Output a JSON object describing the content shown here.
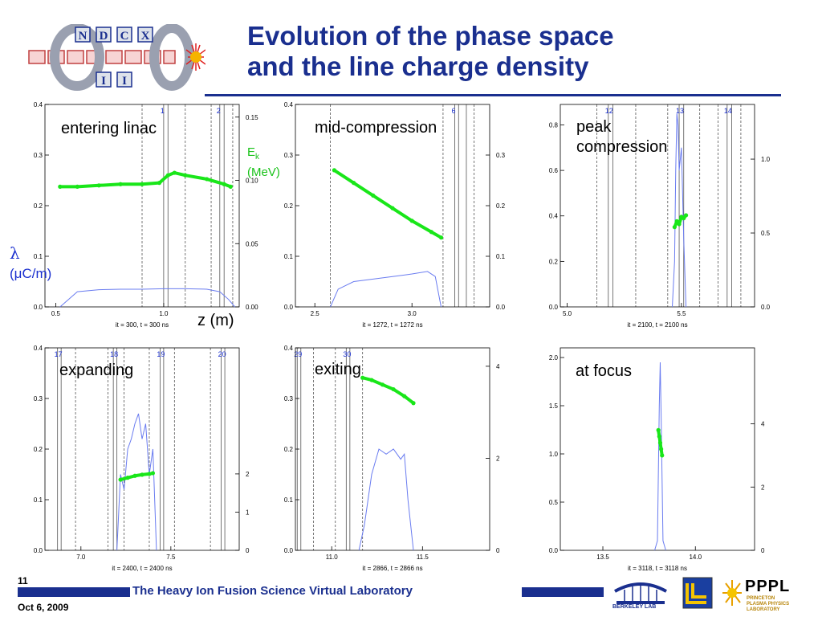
{
  "slide": {
    "title_line1": "Evolution of the phase space",
    "title_line2": "and the line charge density",
    "ek_label_main": "E",
    "ek_label_sub": "k",
    "ek_units": "(MeV)",
    "lambda_symbol": "λ",
    "lambda_units": "(μC/m)",
    "z_label": "z (m)",
    "slide_number": "11",
    "date": "Oct 6, 2009",
    "footer": "The Heavy Ion Fusion Science Virtual Laboratory",
    "logo_letters": [
      "N",
      "D",
      "C",
      "X",
      "I",
      "I"
    ],
    "pppl_name": "PPPL",
    "pppl_sub": "PRINCETON PLASMA PHYSICS LABORATORY",
    "berkeley_text": "BERKELEY LAB"
  },
  "colors": {
    "title": "#1a2f8f",
    "phase_space": "#19e619",
    "line_charge": "#6a7cf0",
    "gap_labels": "#1a2fcf"
  },
  "chart_data": [
    {
      "type": "line",
      "annotation": "entering linac",
      "xticks": [
        0.5,
        1.0
      ],
      "xlim": [
        0.45,
        1.35
      ],
      "ylim": [
        0,
        0.4
      ],
      "yticks": [
        0.0,
        0.1,
        0.2,
        0.3,
        0.4
      ],
      "y2lim": [
        0,
        0.16
      ],
      "y2ticks": [
        0.0,
        0.05,
        0.1,
        0.15
      ],
      "y2ticklabels": [
        "0.00",
        "0.05",
        "0.10",
        "0.15"
      ],
      "footer": "it =  300,   t =   300 ns",
      "gaps": [
        {
          "label": "1",
          "lines": [
            1.0,
            1.02
          ]
        },
        {
          "label": "2",
          "lines": [
            1.26,
            1.28
          ]
        }
      ],
      "dashed": [
        0.9,
        1.1,
        1.22,
        1.32
      ],
      "phase_space": {
        "x": [
          0.52,
          0.6,
          0.7,
          0.8,
          0.9,
          0.98,
          1.02,
          1.05,
          1.1,
          1.2,
          1.28,
          1.31
        ],
        "y": [
          0.095,
          0.095,
          0.096,
          0.097,
          0.097,
          0.098,
          0.104,
          0.106,
          0.104,
          0.101,
          0.097,
          0.095
        ]
      },
      "line_charge": {
        "x": [
          0.52,
          0.6,
          0.7,
          0.8,
          0.9,
          1.0,
          1.1,
          1.2,
          1.26,
          1.3,
          1.33
        ],
        "y": [
          0.0,
          0.03,
          0.034,
          0.035,
          0.035,
          0.036,
          0.036,
          0.035,
          0.03,
          0.015,
          0.0
        ]
      }
    },
    {
      "type": "line",
      "annotation": "mid-compression",
      "xticks": [
        2.5,
        3.0
      ],
      "xlim": [
        2.4,
        3.4
      ],
      "ylim": [
        0,
        0.4
      ],
      "yticks": [
        0.0,
        0.1,
        0.2,
        0.3,
        0.4
      ],
      "y2lim": [
        0,
        0.4
      ],
      "y2ticks": [
        0.0,
        0.1,
        0.2,
        0.3
      ],
      "y2ticklabels": [
        "0.0",
        "0.1",
        "0.2",
        "0.3"
      ],
      "footer": "it = 1272,   t =  1272 ns",
      "gaps": [
        {
          "label": "6",
          "lines": [
            3.22,
            3.24,
            3.28
          ]
        }
      ],
      "dashed": [
        2.58,
        3.16,
        3.32
      ],
      "phase_space": {
        "x": [
          2.6,
          2.7,
          2.8,
          2.9,
          3.0,
          3.1,
          3.15
        ],
        "y": [
          0.27,
          0.245,
          0.22,
          0.195,
          0.17,
          0.148,
          0.137
        ]
      },
      "line_charge": {
        "x": [
          2.58,
          2.62,
          2.7,
          2.8,
          2.9,
          3.0,
          3.08,
          3.12,
          3.15
        ],
        "y": [
          0.0,
          0.035,
          0.05,
          0.055,
          0.06,
          0.065,
          0.07,
          0.06,
          0.0
        ]
      }
    },
    {
      "type": "line",
      "annotation": "peak compression",
      "xticks": [
        5.0,
        5.5
      ],
      "xticklabels": [
        "5.0",
        "5.5"
      ],
      "xlim": [
        4.97,
        5.82
      ],
      "ylim": [
        0,
        0.89
      ],
      "yticks": [
        0.0,
        0.2,
        0.4,
        0.6,
        0.8
      ],
      "y2lim": [
        0,
        1.37
      ],
      "y2ticks": [
        0.0,
        0.5,
        1.0
      ],
      "y2ticklabels": [
        "0.0",
        "0.5",
        "1.0"
      ],
      "footer": "it = 2100,   t =  2100 ns",
      "gaps": [
        {
          "label": "12",
          "lines": [
            5.18,
            5.2
          ]
        },
        {
          "label": "13",
          "lines": [
            5.49,
            5.51
          ]
        },
        {
          "label": "14",
          "lines": [
            5.7,
            5.72
          ]
        }
      ],
      "dashed": [
        5.13,
        5.3,
        5.44,
        5.58,
        5.66,
        5.76
      ],
      "phase_space": {
        "x": [
          5.47,
          5.48,
          5.49,
          5.5,
          5.51,
          5.52
        ],
        "y": [
          0.54,
          0.58,
          0.56,
          0.61,
          0.6,
          0.62
        ]
      },
      "line_charge": {
        "x": [
          5.46,
          5.47,
          5.475,
          5.48,
          5.485,
          5.49,
          5.5,
          5.51,
          5.52
        ],
        "y": [
          0.0,
          0.2,
          0.6,
          0.85,
          0.8,
          0.6,
          0.7,
          0.3,
          0.0
        ]
      }
    },
    {
      "type": "line",
      "annotation": "expanding",
      "xticks": [
        7.0,
        7.5
      ],
      "xlim": [
        6.8,
        7.88
      ],
      "ylim": [
        0,
        0.4
      ],
      "yticks": [
        0.0,
        0.1,
        0.2,
        0.3,
        0.4
      ],
      "y2lim": [
        0,
        5.3
      ],
      "y2ticks": [
        0,
        1,
        2
      ],
      "y2ticklabels": [
        "0",
        "1",
        "2"
      ],
      "footer": "it = 2400,   t =  2400 ns",
      "gaps": [
        {
          "label": "17",
          "lines": [
            6.87,
            6.89
          ]
        },
        {
          "label": "18",
          "lines": [
            7.18,
            7.2
          ]
        },
        {
          "label": "19",
          "lines": [
            7.44,
            7.46
          ]
        },
        {
          "label": "20",
          "lines": [
            7.78,
            7.8
          ]
        }
      ],
      "dashed": [
        6.97,
        7.15,
        7.24,
        7.38,
        7.52,
        7.72
      ],
      "phase_space": {
        "x": [
          7.22,
          7.26,
          7.3,
          7.34,
          7.38,
          7.4
        ],
        "y": [
          1.85,
          1.9,
          1.95,
          1.98,
          2.0,
          2.02
        ]
      },
      "line_charge": {
        "x": [
          7.2,
          7.22,
          7.24,
          7.26,
          7.28,
          7.3,
          7.32,
          7.34,
          7.36,
          7.38,
          7.4,
          7.42
        ],
        "y": [
          0.0,
          0.15,
          0.12,
          0.2,
          0.22,
          0.25,
          0.27,
          0.22,
          0.25,
          0.15,
          0.2,
          0.0
        ]
      }
    },
    {
      "type": "line",
      "annotation": "exiting",
      "xticks": [
        11.0,
        11.5
      ],
      "xlim": [
        10.8,
        11.87
      ],
      "ylim": [
        0,
        0.4
      ],
      "yticks": [
        0.0,
        0.1,
        0.2,
        0.3,
        0.4
      ],
      "y2lim": [
        0,
        4.4
      ],
      "y2ticks": [
        0,
        2,
        4
      ],
      "y2ticklabels": [
        "0",
        "2",
        "4"
      ],
      "footer": "it = 2866,   t =  2866 ns",
      "gaps": [
        {
          "label": "29",
          "lines": [
            10.81,
            10.83
          ]
        },
        {
          "label": "30",
          "lines": [
            11.08,
            11.1
          ]
        }
      ],
      "dashed": [
        10.9,
        11.02,
        11.17
      ],
      "phase_space": {
        "x": [
          11.17,
          11.22,
          11.28,
          11.34,
          11.4,
          11.45
        ],
        "y": [
          3.75,
          3.7,
          3.6,
          3.5,
          3.35,
          3.2
        ]
      },
      "line_charge": {
        "x": [
          11.15,
          11.18,
          11.22,
          11.26,
          11.3,
          11.34,
          11.38,
          11.4,
          11.42,
          11.45
        ],
        "y": [
          0.0,
          0.05,
          0.15,
          0.2,
          0.19,
          0.2,
          0.18,
          0.19,
          0.1,
          0.0
        ]
      }
    },
    {
      "type": "line",
      "annotation": "at focus",
      "xticks": [
        13.5,
        14.0
      ],
      "xlim": [
        13.27,
        14.32
      ],
      "ylim": [
        0,
        2.1
      ],
      "yticks": [
        0.0,
        0.5,
        1.0,
        1.5,
        2.0
      ],
      "y2lim": [
        0,
        6.4
      ],
      "y2ticks": [
        0,
        2,
        4
      ],
      "y2ticklabels": [
        "0",
        "2",
        "4"
      ],
      "footer": "it = 3118,   t =  3118 ns",
      "gaps": [],
      "dashed": [],
      "phase_space": {
        "x": [
          13.8,
          13.805,
          13.81,
          13.815,
          13.82
        ],
        "y": [
          3.8,
          3.6,
          3.4,
          3.2,
          3.0
        ]
      },
      "line_charge": {
        "x": [
          13.78,
          13.795,
          13.805,
          13.81,
          13.815,
          13.825,
          13.84
        ],
        "y": [
          0.0,
          0.1,
          1.5,
          1.95,
          1.4,
          0.1,
          0.0
        ]
      }
    }
  ]
}
